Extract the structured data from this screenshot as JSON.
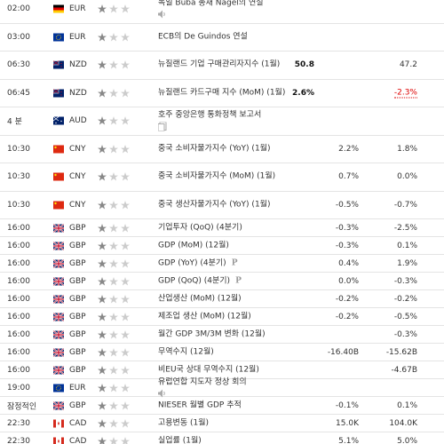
{
  "rows": [
    {
      "time": "02:00",
      "flag": "de",
      "currency": "EUR",
      "event": "독일 Buba 총재 Nagel의 연설",
      "icon": "speaker"
    },
    {
      "time": "03:00",
      "flag": "eu",
      "currency": "EUR",
      "event": "ECB의 De Guindos 연설"
    },
    {
      "time": "06:30",
      "flag": "nz",
      "currency": "NZD",
      "event": "뉴질랜드 기업 구매관리자지수 (1월)",
      "actual": "50.8",
      "previous": "47.2"
    },
    {
      "time": "06:45",
      "flag": "nz",
      "currency": "NZD",
      "event": "뉴질랜드 카드구매 지수 (MoM) (1월)",
      "actual": "2.6%",
      "previous": "-2.3%",
      "previous_style": "worse"
    },
    {
      "time": "4 분",
      "flag": "au",
      "currency": "AUD",
      "event": "호주 중앙은행 통화정책 보고서",
      "icon": "doc"
    },
    {
      "time": "10:30",
      "flag": "cn",
      "currency": "CNY",
      "event": "중국 소비자물가지수 (YoY) (1월)",
      "forecast": "2.2%",
      "previous": "1.8%"
    },
    {
      "time": "10:30",
      "flag": "cn",
      "currency": "CNY",
      "event": "중국 소비자물가지수 (MoM) (1월)",
      "forecast": "0.7%",
      "previous": "0.0%"
    },
    {
      "time": "10:30",
      "flag": "cn",
      "currency": "CNY",
      "event": "중국 생산자물가지수 (YoY) (1월)",
      "forecast": "-0.5%",
      "previous": "-0.7%"
    },
    {
      "time": "16:00",
      "flag": "gb",
      "currency": "GBP",
      "event": "기업투자 (QoQ) (4분기)",
      "forecast": "-0.3%",
      "previous": "-2.5%"
    },
    {
      "time": "16:00",
      "flag": "gb",
      "currency": "GBP",
      "event": "GDP (MoM) (12월)",
      "forecast": "-0.3%",
      "previous": "0.1%"
    },
    {
      "time": "16:00",
      "flag": "gb",
      "currency": "GBP",
      "event": "GDP (YoY) (4분기)",
      "note": "P",
      "forecast": "0.4%",
      "previous": "1.9%"
    },
    {
      "time": "16:00",
      "flag": "gb",
      "currency": "GBP",
      "event": "GDP (QoQ) (4분기)",
      "note": "P",
      "forecast": "0.0%",
      "previous": "-0.3%"
    },
    {
      "time": "16:00",
      "flag": "gb",
      "currency": "GBP",
      "event": "산업생산 (MoM) (12월)",
      "forecast": "-0.2%",
      "previous": "-0.2%"
    },
    {
      "time": "16:00",
      "flag": "gb",
      "currency": "GBP",
      "event": "제조업 생산 (MoM) (12월)",
      "forecast": "-0.2%",
      "previous": "-0.5%"
    },
    {
      "time": "16:00",
      "flag": "gb",
      "currency": "GBP",
      "event": "월간 GDP 3M/3M 변화 (12월)",
      "previous": "-0.3%"
    },
    {
      "time": "16:00",
      "flag": "gb",
      "currency": "GBP",
      "event": "무역수지 (12월)",
      "forecast": "-16.40B",
      "previous": "-15.62B"
    },
    {
      "time": "16:00",
      "flag": "gb",
      "currency": "GBP",
      "event": "비EU국 상대 무역수지 (12월)",
      "previous": "-4.67B"
    },
    {
      "time": "19:00",
      "flag": "eu",
      "currency": "EUR",
      "event": "유럽연합 지도자 정상 회의",
      "icon": "speaker"
    },
    {
      "time": "잠정적인",
      "flag": "gb",
      "currency": "GBP",
      "event": "NIESER 월별 GDP 추적",
      "forecast": "-0.1%",
      "previous": "0.1%"
    },
    {
      "time": "22:30",
      "flag": "ca",
      "currency": "CAD",
      "event": "고용변동 (1월)",
      "forecast": "15.0K",
      "previous": "104.0K"
    },
    {
      "time": "22:30",
      "flag": "ca",
      "currency": "CAD",
      "event": "실업률 (1월)",
      "forecast": "5.1%",
      "previous": "5.0%"
    }
  ]
}
